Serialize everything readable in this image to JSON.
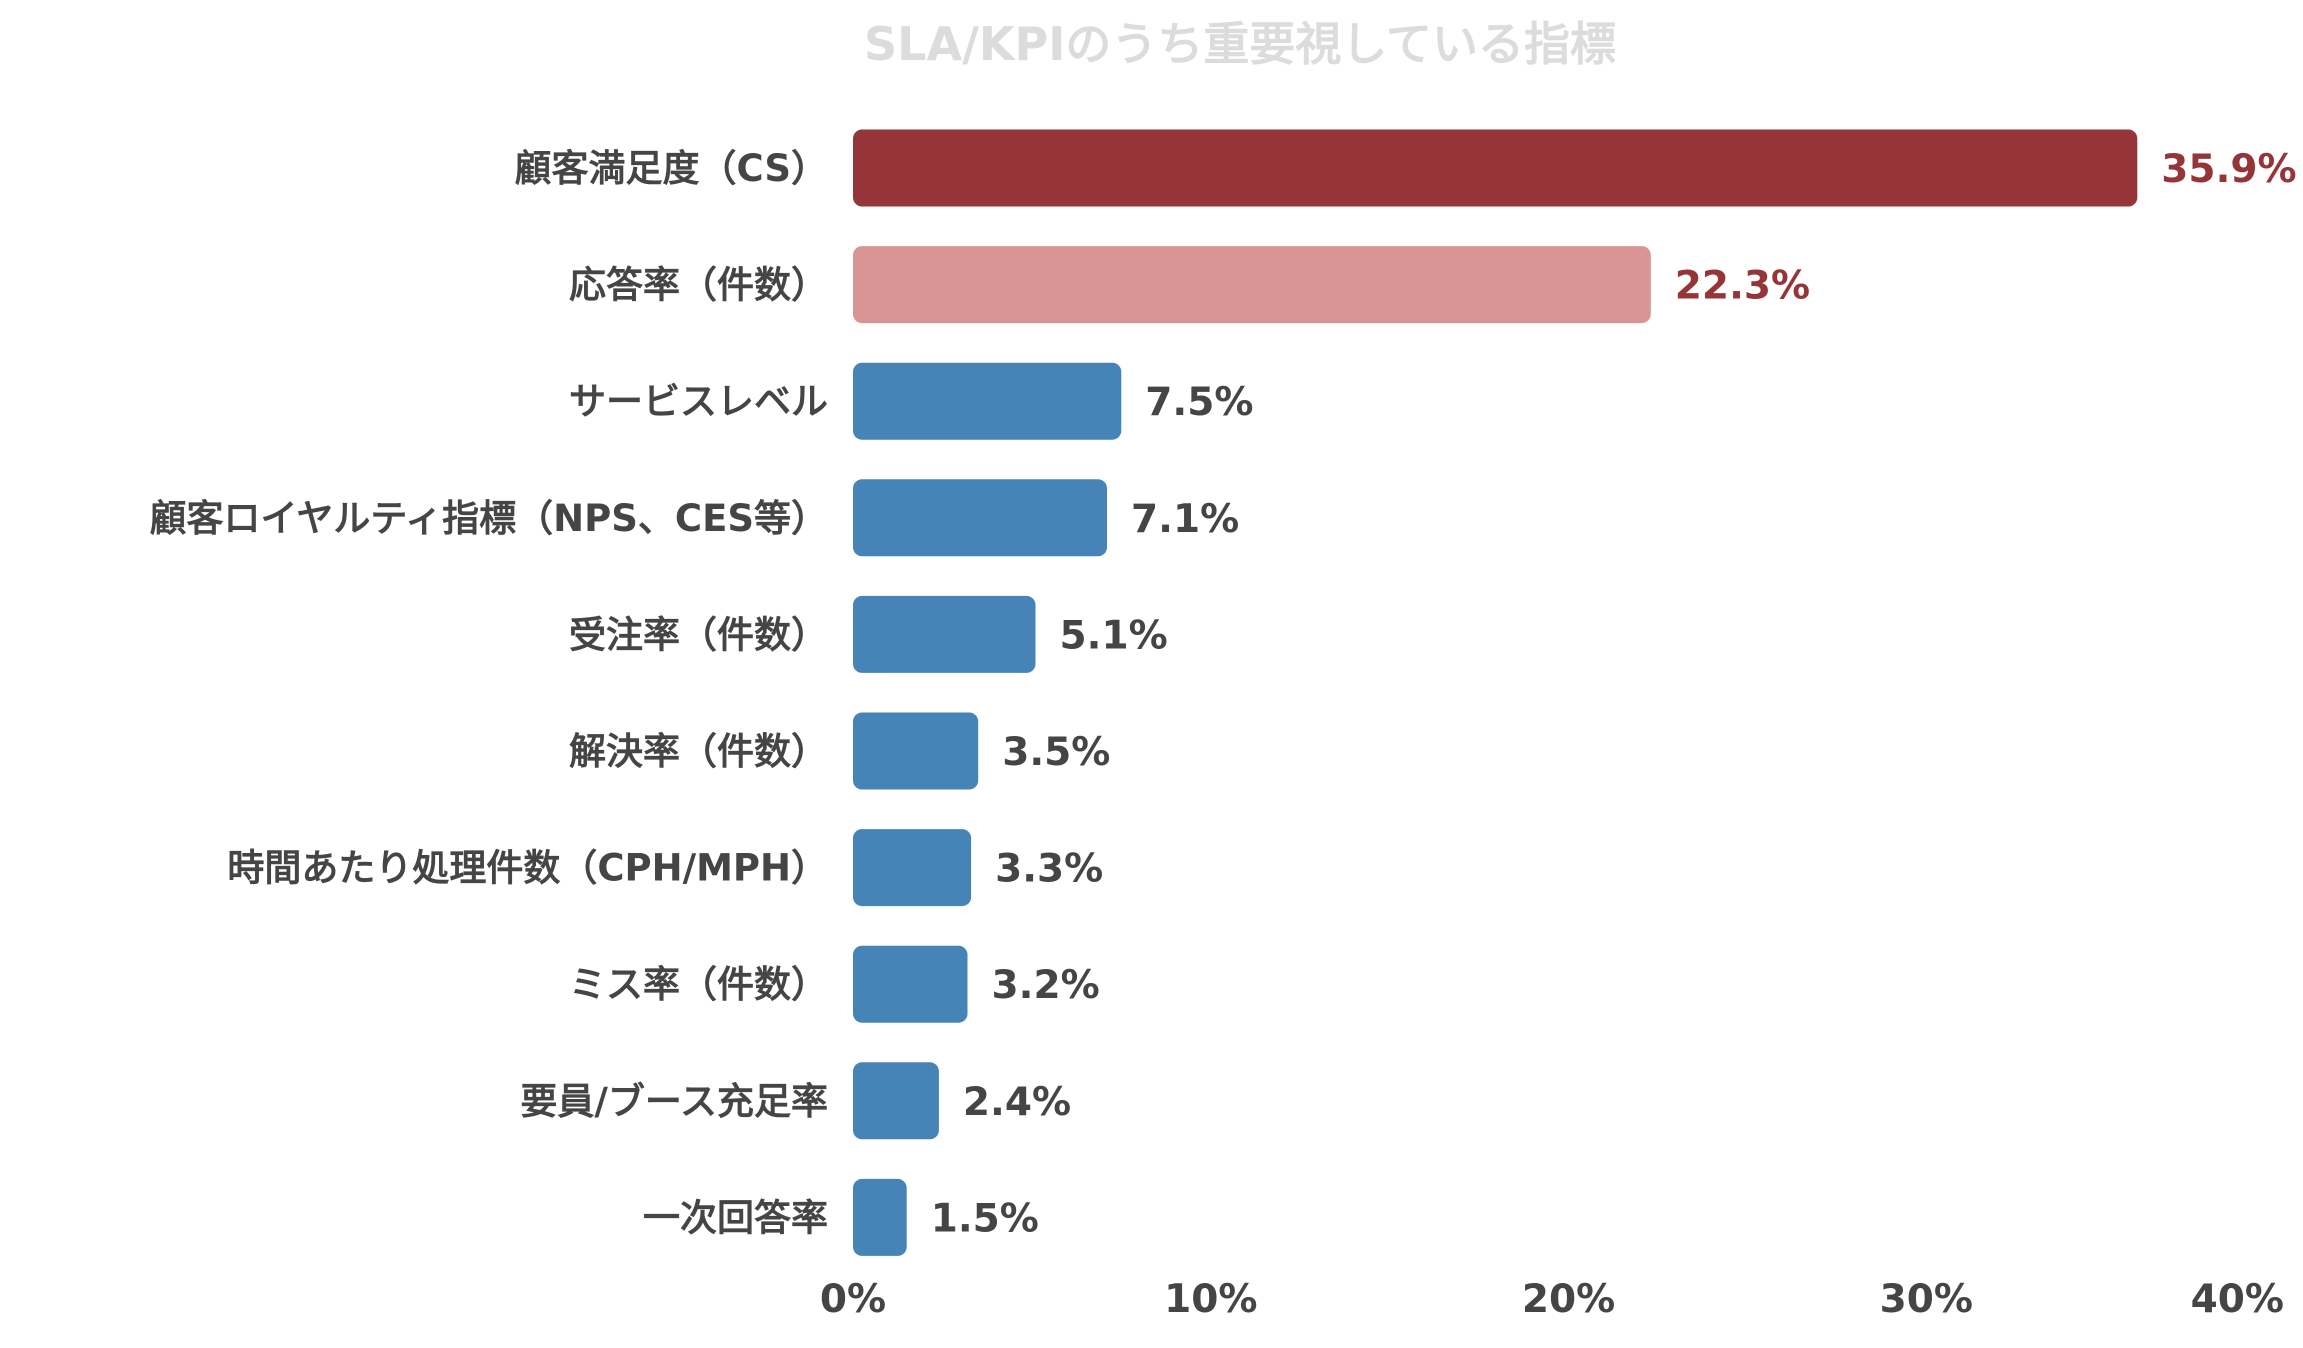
{
  "chart_data": {
    "type": "bar",
    "orientation": "horizontal",
    "title": "SLA/KPIのうち重要視している指標",
    "xlabel": "",
    "ylabel": "",
    "categories": [
      "顧客満足度（CS）",
      "応答率（件数）",
      "サービスレベル",
      "顧客ロイヤルティ指標（NPS、CES等）",
      "受注率（件数）",
      "解決率（件数）",
      "時間あたり処理件数（CPH/MPH）",
      "ミス率（件数）",
      "要員/ブース充足率",
      "一次回答率"
    ],
    "values": [
      35.9,
      22.3,
      7.5,
      7.1,
      5.1,
      3.5,
      3.3,
      3.2,
      2.4,
      1.5
    ],
    "value_labels": [
      "35.9%",
      "22.3%",
      "7.5%",
      "7.1%",
      "5.1%",
      "3.5%",
      "3.3%",
      "3.2%",
      "2.4%",
      "1.5%"
    ],
    "bar_colors": [
      "#963537",
      "#d99594",
      "#4684b8",
      "#4684b8",
      "#4684b8",
      "#4684b8",
      "#4684b8",
      "#4684b8",
      "#4684b8",
      "#4684b8"
    ],
    "value_label_colors": [
      "#963537",
      "#963537",
      "#454545",
      "#454545",
      "#454545",
      "#454545",
      "#454545",
      "#454545",
      "#454545",
      "#454545"
    ],
    "xlim": [
      0,
      40
    ],
    "x_ticks": [
      0,
      10,
      20,
      30,
      40
    ],
    "x_tick_labels": [
      "0%",
      "10%",
      "20%",
      "30%",
      "40%"
    ],
    "grid": false,
    "legend": "none"
  }
}
